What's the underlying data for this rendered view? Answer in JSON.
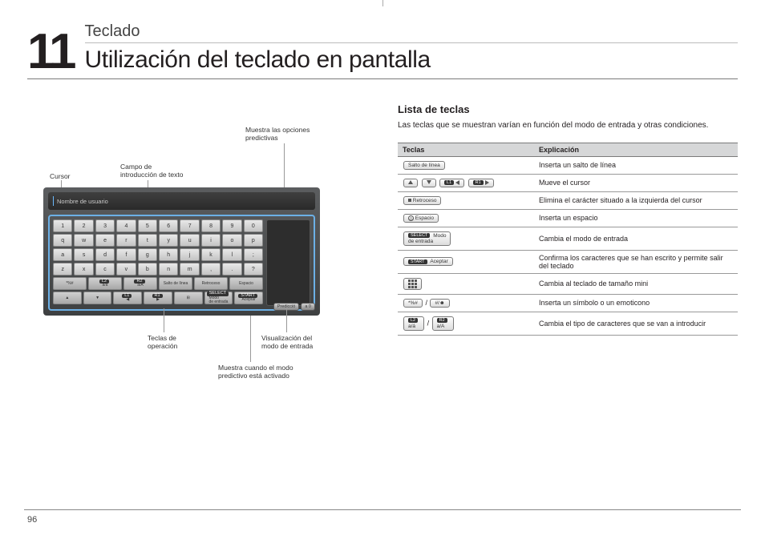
{
  "chapter": {
    "number": "11",
    "category": "Teclado",
    "title": "Utilización del teclado en pantalla"
  },
  "section": {
    "title": "Lista de teclas",
    "desc": "Las teclas que se muestran varían en función del modo de entrada y otras condiciones."
  },
  "table": {
    "headers": [
      "Teclas",
      "Explicación"
    ],
    "rows": [
      {
        "key_html": "<span class='minibtn'>Salto de línea</span>",
        "exp": "Inserta un salto de línea"
      },
      {
        "key_html": "<span class='minibtn'><span class='arrow-tri tri-up'></span></span> <span class='minibtn'><span class='arrow-tri tri-down'></span></span> <span class='minibtn'><span class='pad'>L1</span><span class='arrow-tri tri-left'></span></span> <span class='minibtn'><span class='pad'>R1</span><span class='arrow-tri tri-right'></span></span>",
        "exp": "Mueve el cursor"
      },
      {
        "key_html": "<span class='minibtn'><span class='sq'></span>&nbsp;Retroceso</span>",
        "exp": "Elimina el carácter situado a la izquierda del cursor"
      },
      {
        "key_html": "<span class='minibtn'><span class='circbtn'>△</span>&nbsp;Espacio</span>",
        "exp": "Inserta un espacio"
      },
      {
        "key_html": "<span class='minibtn'><span class='pad'>SELECT</span>&nbsp;Modo<br>de entrada</span>",
        "exp": "Cambia el modo de entrada"
      },
      {
        "key_html": "<span class='minibtn'><span class='pad'>START</span>&nbsp;Aceptar</span>",
        "exp": "Confirma los caracteres que se han escrito y permite salir del teclado"
      },
      {
        "key_html": "<span class='minibtn'><span class='grid9'><span></span><span></span><span></span><span></span><span></span><span></span><span></span><span></span><span></span></span></span>",
        "exp": "Cambia al teclado de tamaño mini"
      },
      {
        "key_html": "<span class='minibtn'>*%#</span>&nbsp;/&nbsp;<span class='minibtn'>#/☻</span>",
        "exp": "Inserta un símbolo o un emoticono"
      },
      {
        "key_html": "<span class='minibtn'><span class='pad'>L2</span><br>a/á</span>&nbsp;/&nbsp;<span class='minibtn'><span class='pad'>R2</span><br>a/A</span>",
        "exp": "Cambia el tipo de caracteres que se van a introducir"
      }
    ]
  },
  "callouts": {
    "cursor": "Cursor",
    "field": "Campo de\nintroducción de texto",
    "predict_opts": "Muestra las opciones\npredictivas",
    "op_keys": "Teclas de\noperación",
    "mode_vis": "Visualización del\nmodo de entrada",
    "predict_on": "Muestra cuando el modo\npredictivo está activado"
  },
  "kb": {
    "topbar": "Nombre de usuario",
    "rows": [
      [
        "1",
        "2",
        "3",
        "4",
        "5",
        "6",
        "7",
        "8",
        "9",
        "0"
      ],
      [
        "q",
        "w",
        "e",
        "r",
        "t",
        "y",
        "u",
        "i",
        "o",
        "p"
      ],
      [
        "a",
        "s",
        "d",
        "f",
        "g",
        "h",
        "j",
        "k",
        "l",
        ";"
      ],
      [
        "z",
        "x",
        "c",
        "v",
        "b",
        "n",
        "m",
        ",",
        ".",
        "?"
      ]
    ],
    "op_row_left": [
      "*%#",
      "a/á",
      "a/A",
      "Salto de línea",
      "Retroceso",
      "Espacio"
    ],
    "op_row_tags": [
      "",
      "L2",
      "R2",
      "",
      "",
      ""
    ],
    "bottom": [
      "▲",
      "▼",
      "◀",
      "▶",
      "⊞",
      "Modo\nde entrada",
      "Aceptar"
    ],
    "bottom_tags": [
      "",
      "",
      "L1",
      "R1",
      "",
      "SELECT",
      "START"
    ],
    "pred": "Predicció",
    "mode_badge": "a  0"
  },
  "page_number": "96",
  "colors": {
    "rule": "#7a7a7a",
    "header_bg": "#d6d7d8",
    "kb_border": "#6cb0e6"
  }
}
